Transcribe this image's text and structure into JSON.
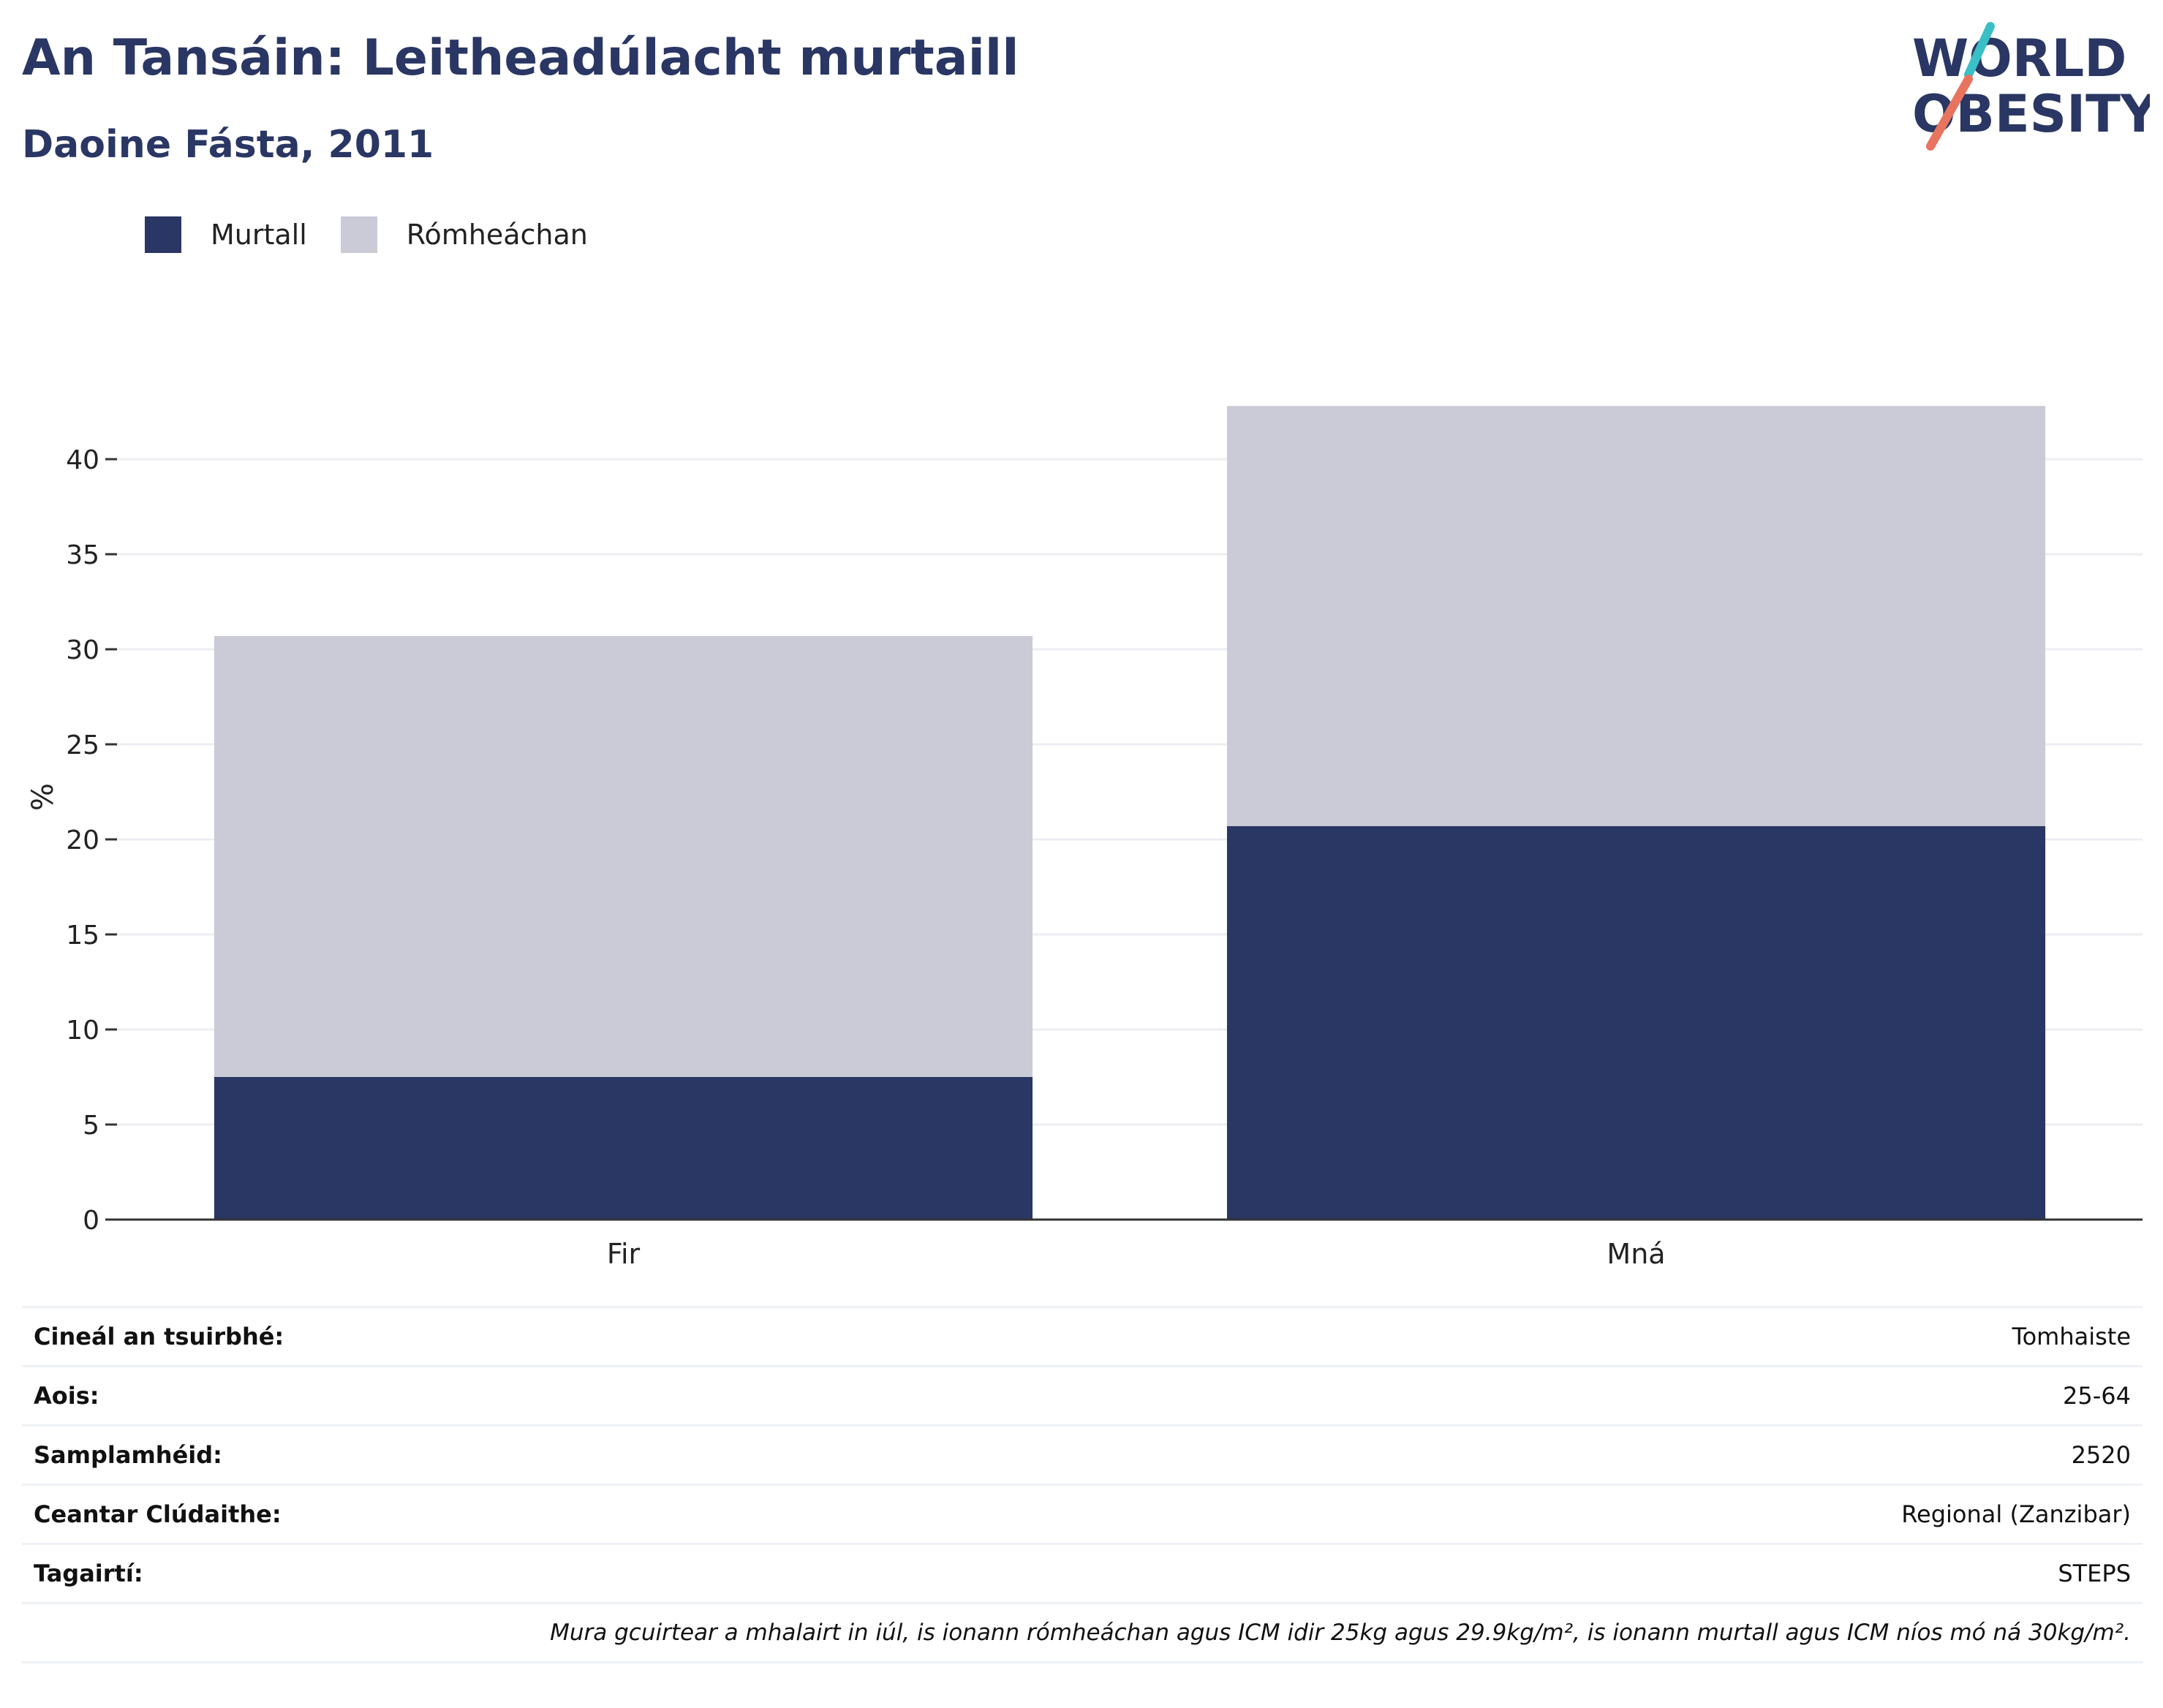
{
  "header": {
    "title": "An Tansáin: Leitheadúlacht murtaill",
    "subtitle": "Daoine Fásta, 2011"
  },
  "logo": {
    "line1": "WORLD",
    "line2": "OBESITY",
    "colors": {
      "text": "#2a3663",
      "accent_teal": "#3bbfc6",
      "accent_coral": "#e8735e"
    }
  },
  "chart_data": {
    "type": "bar",
    "stacked": true,
    "categories": [
      "Fir",
      "Mná"
    ],
    "series": [
      {
        "name": "Murtall",
        "values": [
          7.5,
          20.7
        ],
        "color": "#2a3663"
      },
      {
        "name": "Rómheáchan",
        "values": [
          23.2,
          22.1
        ],
        "color": "#cacbd6"
      }
    ],
    "ylabel": "%",
    "ylim": [
      0,
      45
    ],
    "yticks": [
      0,
      5,
      10,
      15,
      20,
      25,
      30,
      35,
      40
    ],
    "grid": true,
    "legend_position": "top-left"
  },
  "info": {
    "rows": [
      {
        "key": "Cineál an tsuirbhé:",
        "value": "Tomhaiste"
      },
      {
        "key": "Aois:",
        "value": "25-64"
      },
      {
        "key": "Samplamhéid:",
        "value": "2520"
      },
      {
        "key": "Ceantar Clúdaithe:",
        "value": "Regional (Zanzibar)"
      },
      {
        "key": "Tagairtí:",
        "value": "STEPS"
      }
    ],
    "note": "Mura gcuirtear a mhalairt in iúl, is ionann rómheáchan agus ICM idir 25kg agus 29.9kg/m², is ionann murtall agus ICM níos mó ná 30kg/m²."
  }
}
